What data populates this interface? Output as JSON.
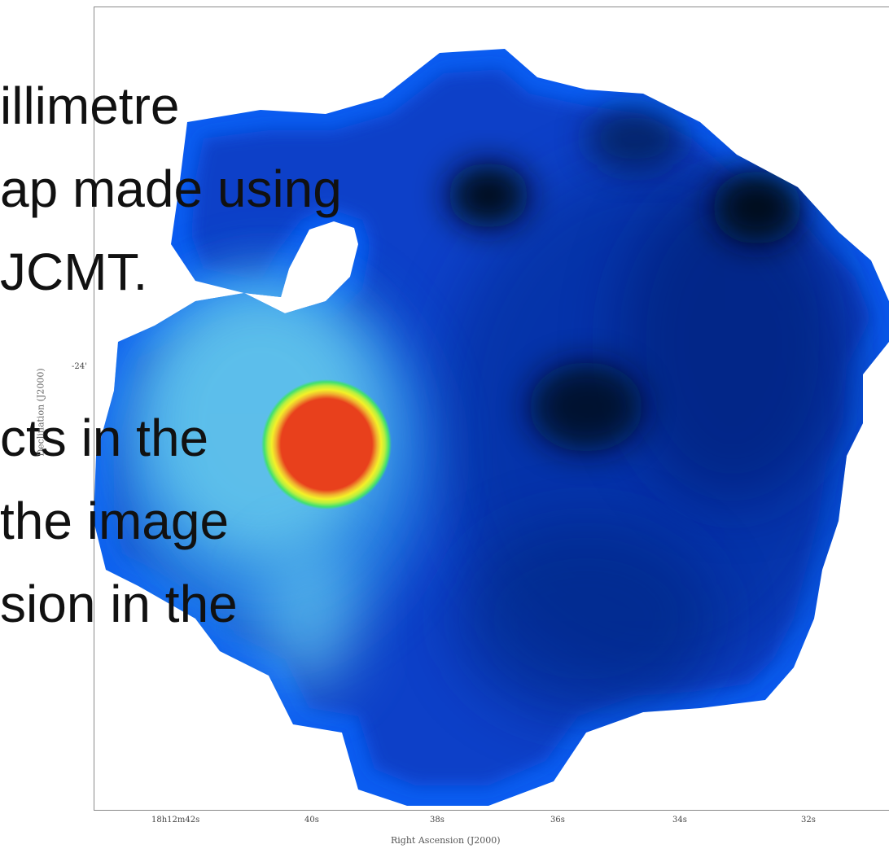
{
  "slide": {
    "lines": [
      "illimetre",
      "ap made using",
      "JCMT.",
      "cts in the",
      "the image",
      "sion in the"
    ]
  },
  "axes": {
    "x_label": "Right Ascension (J2000)",
    "y_label": "Declination (J2000)",
    "x_ticks": [
      "18h12m42s",
      "40s",
      "38s",
      "36s",
      "34s",
      "32s"
    ],
    "y_ticks": [
      "-24'"
    ]
  },
  "colors": {
    "map_edge": "#0a5cf0",
    "map_body": "#0b3fc8",
    "dark_core": "#02081a",
    "bright_core": "#e8401c",
    "ring_yellow": "#f4f028",
    "ring_green": "#30e070",
    "glow_cyan": "#7fe9ee"
  }
}
